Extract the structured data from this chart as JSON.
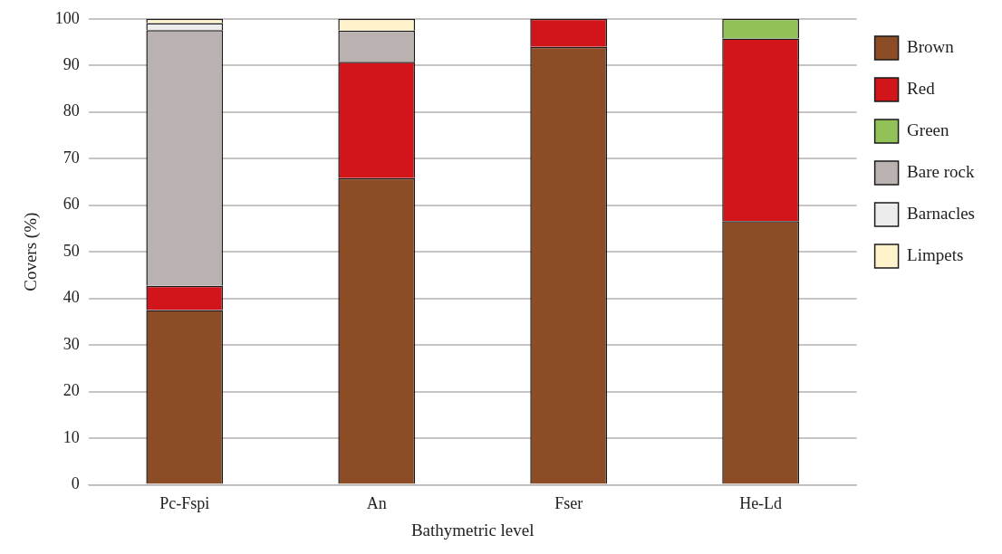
{
  "chart_data": {
    "type": "bar",
    "stacked": true,
    "xlabel": "Bathymetric level",
    "ylabel": "Covers (%)",
    "categories": [
      "Pc-Fspi",
      "An",
      "Fser",
      "He-Ld"
    ],
    "series": [
      {
        "name": "Brown",
        "color": "#8b4c26",
        "values": [
          37.5,
          65.8,
          94,
          56.6
        ]
      },
      {
        "name": "Red",
        "color": "#d2151a",
        "values": [
          5.2,
          25,
          6,
          39.2
        ]
      },
      {
        "name": "Green",
        "color": "#92c257",
        "values": [
          0,
          0,
          0,
          4.2
        ]
      },
      {
        "name": "Bare rock",
        "color": "#bab2b0",
        "values": [
          54.9,
          6.7,
          0,
          0
        ]
      },
      {
        "name": "Barnacles",
        "color": "#ececec",
        "values": [
          1.5,
          0,
          0,
          0
        ]
      },
      {
        "name": "Limpets",
        "color": "#fff3cc",
        "values": [
          0.9,
          2.5,
          0,
          0
        ]
      }
    ],
    "ylim": [
      0,
      100
    ],
    "yticks": [
      0,
      10,
      20,
      30,
      40,
      50,
      60,
      70,
      80,
      90,
      100
    ],
    "grid": "y",
    "legend": "right"
  }
}
